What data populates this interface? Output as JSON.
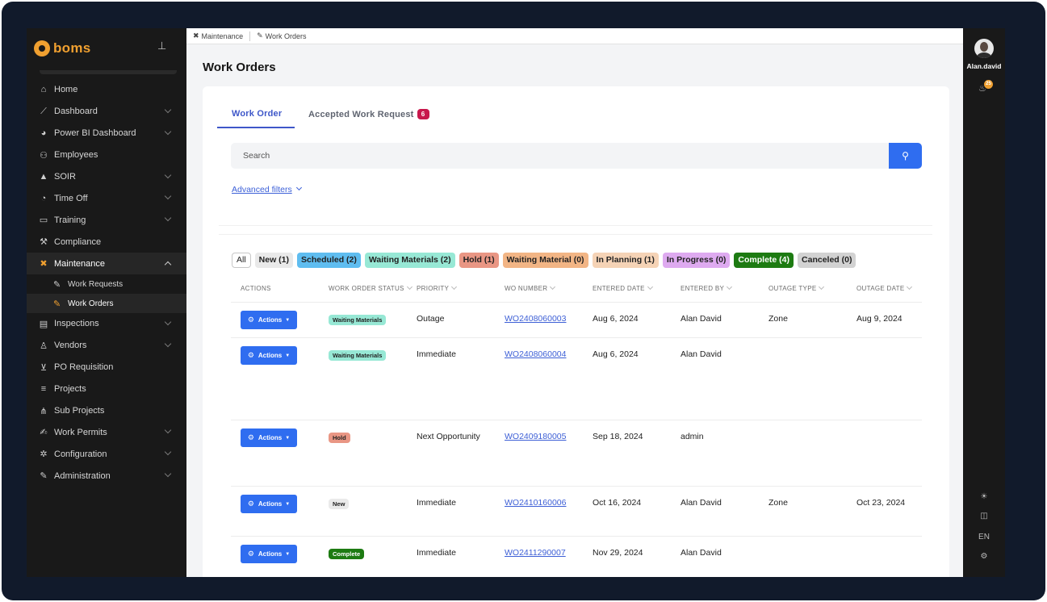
{
  "brand": {
    "name": "boms"
  },
  "sidebar": {
    "items": [
      {
        "label": "Home",
        "icon": "home-icon",
        "glyph": "⌂",
        "expandable": false
      },
      {
        "label": "Dashboard",
        "icon": "chart-line-icon",
        "glyph": "⟋",
        "expandable": true
      },
      {
        "label": "Power BI Dashboard",
        "icon": "pie-chart-icon",
        "glyph": "◕",
        "expandable": true
      },
      {
        "label": "Employees",
        "icon": "users-icon",
        "glyph": "⚇",
        "expandable": false
      },
      {
        "label": "SOIR",
        "icon": "warning-icon",
        "glyph": "▲",
        "expandable": true
      },
      {
        "label": "Time Off",
        "icon": "clock-icon",
        "glyph": "◔",
        "expandable": true
      },
      {
        "label": "Training",
        "icon": "training-icon",
        "glyph": "▭",
        "expandable": true
      },
      {
        "label": "Compliance",
        "icon": "gavel-icon",
        "glyph": "⚒",
        "expandable": false
      },
      {
        "label": "Maintenance",
        "icon": "tools-icon",
        "glyph": "✖",
        "expandable": true,
        "active": true
      }
    ],
    "maintenance_sub": [
      {
        "label": "Work Requests",
        "icon": "wrench-icon",
        "glyph": "✎"
      },
      {
        "label": "Work Orders",
        "icon": "wrench-icon",
        "glyph": "✎",
        "current": true
      }
    ],
    "items_after": [
      {
        "label": "Inspections",
        "icon": "clipboard-check-icon",
        "glyph": "▤",
        "expandable": true
      },
      {
        "label": "Vendors",
        "icon": "vendor-icon",
        "glyph": "♙",
        "expandable": true
      },
      {
        "label": "PO Requisition",
        "icon": "cart-icon",
        "glyph": "⊻",
        "expandable": false
      },
      {
        "label": "Projects",
        "icon": "bars-icon",
        "glyph": "≡",
        "expandable": false
      },
      {
        "label": "Sub Projects",
        "icon": "sitemap-icon",
        "glyph": "⋔",
        "expandable": false
      },
      {
        "label": "Work Permits",
        "icon": "signature-icon",
        "glyph": "✍",
        "expandable": true
      },
      {
        "label": "Configuration",
        "icon": "gear-icon",
        "glyph": "✲",
        "expandable": true
      },
      {
        "label": "Administration",
        "icon": "wrench-icon",
        "glyph": "✎",
        "expandable": true
      }
    ]
  },
  "breadcrumb": [
    {
      "label": "Maintenance",
      "icon": "tools-icon",
      "glyph": "✖"
    },
    {
      "label": "Work Orders",
      "icon": "wrench-icon",
      "glyph": "✎"
    }
  ],
  "page": {
    "title": "Work Orders"
  },
  "tabs": {
    "work_order": "Work Order",
    "accepted": "Accepted Work Request",
    "accepted_count": "6"
  },
  "search": {
    "placeholder": "Search"
  },
  "advanced_filters": "Advanced filters",
  "chips": [
    {
      "label": "All",
      "bg": "#ffffff"
    },
    {
      "label": "New (1)",
      "bg": "#e9e9e9"
    },
    {
      "label": "Scheduled (2)",
      "bg": "#5fbdf0"
    },
    {
      "label": "Waiting Materials (2)",
      "bg": "#97e8d5"
    },
    {
      "label": "Hold (1)",
      "bg": "#e99684"
    },
    {
      "label": "Waiting Material (0)",
      "bg": "#f2b585"
    },
    {
      "label": "In Planning (1)",
      "bg": "#f5d3b6"
    },
    {
      "label": "In Progress (0)",
      "bg": "#deaaf0",
      "fg": "#222"
    },
    {
      "label": "Complete (4)",
      "bg": "#1d7b12",
      "fg": "#ffffff"
    },
    {
      "label": "Canceled (0)",
      "bg": "#d2d2d2"
    }
  ],
  "table": {
    "headers": [
      "ACTIONS",
      "WORK ORDER STATUS",
      "PRIORITY",
      "WO NUMBER",
      "ENTERED DATE",
      "ENTERED BY",
      "OUTAGE TYPE",
      "OUTAGE DATE"
    ],
    "action_label": "Actions",
    "rows": [
      {
        "status": "Waiting Materials",
        "status_bg": "#97e8d5",
        "status_fg": "#222",
        "priority": "Outage",
        "wo": "WO2408060003",
        "entered_date": "Aug 6, 2024",
        "entered_by": "Alan David",
        "outage_type": "Zone",
        "outage_date": "Aug 9, 2024"
      },
      {
        "status": "Waiting Materials",
        "status_bg": "#97e8d5",
        "status_fg": "#222",
        "priority": "Immediate",
        "wo": "WO2408060004",
        "entered_date": "Aug 6, 2024",
        "entered_by": "Alan David",
        "outage_type": "",
        "outage_date": ""
      },
      {
        "status": "Hold",
        "status_bg": "#e99684",
        "status_fg": "#222",
        "priority": "Next Opportunity",
        "wo": "WO2409180005",
        "entered_date": "Sep 18, 2024",
        "entered_by": "admin",
        "outage_type": "",
        "outage_date": ""
      },
      {
        "status": "New",
        "status_bg": "#eaeaea",
        "status_fg": "#222",
        "priority": "Immediate",
        "wo": "WO2410160006",
        "entered_date": "Oct 16, 2024",
        "entered_by": "Alan David",
        "outage_type": "Zone",
        "outage_date": "Oct 23, 2024"
      },
      {
        "status": "Complete",
        "status_bg": "#1d7b12",
        "status_fg": "#ffffff",
        "priority": "Immediate",
        "wo": "WO2411290007",
        "entered_date": "Nov 29, 2024",
        "entered_by": "Alan David",
        "outage_type": "",
        "outage_date": ""
      }
    ]
  },
  "user": {
    "name": "Alan.david",
    "notifications": "25"
  },
  "rail": {
    "language": "EN"
  }
}
